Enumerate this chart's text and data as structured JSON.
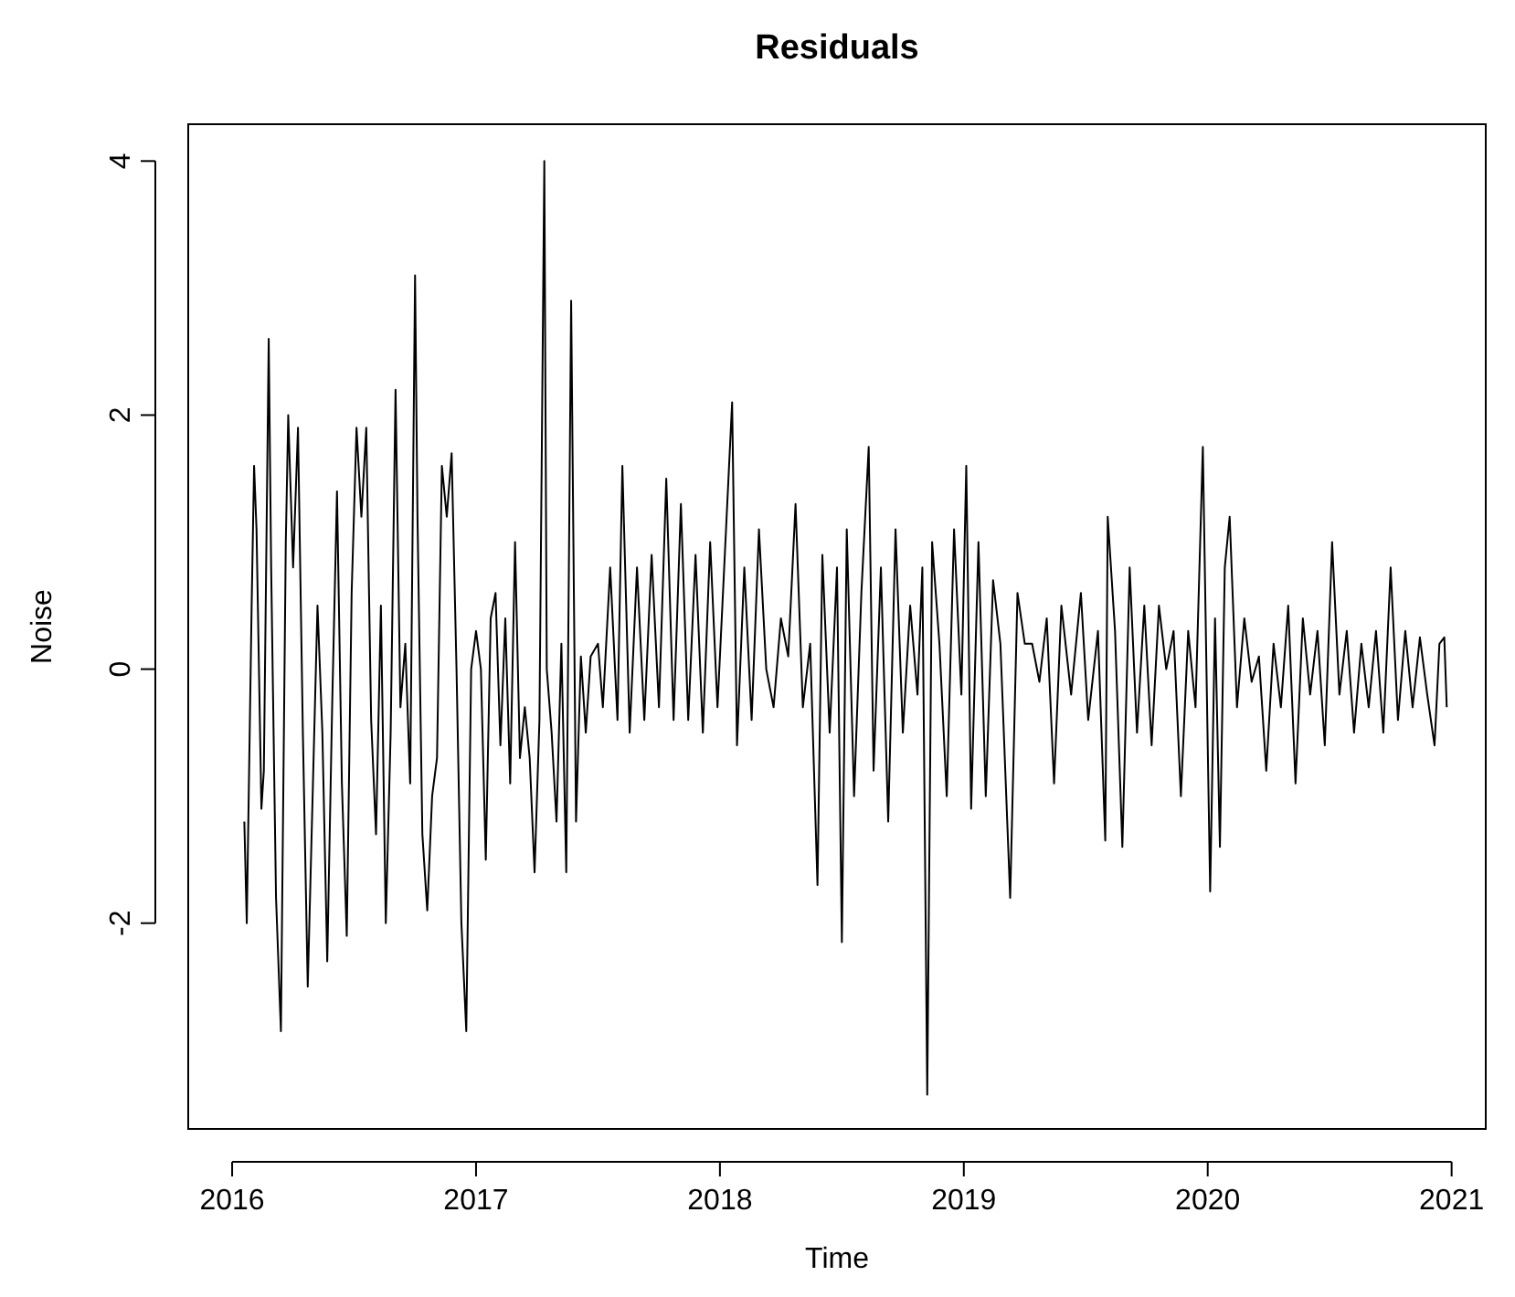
{
  "chart_data": {
    "type": "line",
    "title": "Residuals",
    "xlabel": "Time",
    "ylabel": "Noise",
    "xlim": [
      2015.82,
      2021.14
    ],
    "ylim": [
      -3.62,
      4.29
    ],
    "xticks": [
      2016,
      2017,
      2018,
      2019,
      2020,
      2021
    ],
    "yticks": [
      -2,
      0,
      2,
      4
    ],
    "grid": false,
    "marker": "none",
    "line_style": "solid",
    "series": [
      {
        "color": "#000000",
        "x": [
          2016.05,
          2016.06,
          2016.08,
          2016.09,
          2016.1,
          2016.12,
          2016.13,
          2016.15,
          2016.16,
          2016.18,
          2016.2,
          2016.22,
          2016.23,
          2016.25,
          2016.27,
          2016.29,
          2016.31,
          2016.33,
          2016.35,
          2016.37,
          2016.39,
          2016.41,
          2016.43,
          2016.45,
          2016.47,
          2016.49,
          2016.51,
          2016.53,
          2016.55,
          2016.57,
          2016.59,
          2016.61,
          2016.63,
          2016.65,
          2016.67,
          2016.69,
          2016.71,
          2016.73,
          2016.75,
          2016.76,
          2016.78,
          2016.8,
          2016.82,
          2016.84,
          2016.86,
          2016.88,
          2016.9,
          2016.92,
          2016.94,
          2016.96,
          2016.98,
          2017.0,
          2017.02,
          2017.04,
          2017.06,
          2017.08,
          2017.1,
          2017.12,
          2017.14,
          2017.16,
          2017.18,
          2017.2,
          2017.22,
          2017.24,
          2017.26,
          2017.28,
          2017.29,
          2017.31,
          2017.33,
          2017.35,
          2017.37,
          2017.39,
          2017.41,
          2017.43,
          2017.45,
          2017.47,
          2017.5,
          2017.52,
          2017.55,
          2017.58,
          2017.6,
          2017.63,
          2017.66,
          2017.69,
          2017.72,
          2017.75,
          2017.78,
          2017.81,
          2017.84,
          2017.87,
          2017.9,
          2017.93,
          2017.96,
          2017.99,
          2018.02,
          2018.05,
          2018.07,
          2018.1,
          2018.13,
          2018.16,
          2018.19,
          2018.22,
          2018.25,
          2018.28,
          2018.31,
          2018.34,
          2018.37,
          2018.4,
          2018.42,
          2018.45,
          2018.48,
          2018.5,
          2018.52,
          2018.55,
          2018.58,
          2018.61,
          2018.63,
          2018.66,
          2018.69,
          2018.72,
          2018.75,
          2018.78,
          2018.81,
          2018.83,
          2018.85,
          2018.87,
          2018.9,
          2018.93,
          2018.96,
          2018.99,
          2019.01,
          2019.03,
          2019.06,
          2019.09,
          2019.12,
          2019.15,
          2019.19,
          2019.22,
          2019.25,
          2019.28,
          2019.31,
          2019.34,
          2019.37,
          2019.4,
          2019.44,
          2019.48,
          2019.51,
          2019.55,
          2019.58,
          2019.59,
          2019.62,
          2019.65,
          2019.68,
          2019.71,
          2019.74,
          2019.77,
          2019.8,
          2019.83,
          2019.86,
          2019.89,
          2019.92,
          2019.95,
          2019.98,
          2020.0,
          2020.01,
          2020.03,
          2020.05,
          2020.07,
          2020.09,
          2020.12,
          2020.15,
          2020.18,
          2020.21,
          2020.24,
          2020.27,
          2020.3,
          2020.33,
          2020.36,
          2020.39,
          2020.42,
          2020.45,
          2020.48,
          2020.51,
          2020.54,
          2020.57,
          2020.6,
          2020.63,
          2020.66,
          2020.69,
          2020.72,
          2020.75,
          2020.78,
          2020.81,
          2020.84,
          2020.87,
          2020.9,
          2020.93,
          2020.95,
          2020.97,
          2020.98
        ],
        "values": [
          -1.2,
          -2.0,
          0.5,
          1.6,
          1.1,
          -1.1,
          -0.8,
          2.6,
          0.8,
          -1.8,
          -2.85,
          1.0,
          2.0,
          0.8,
          1.9,
          -0.5,
          -2.5,
          -1.0,
          0.5,
          -0.5,
          -2.3,
          -0.3,
          1.4,
          -0.9,
          -2.1,
          0.6,
          1.9,
          1.2,
          1.9,
          -0.4,
          -1.3,
          0.5,
          -2.0,
          -0.5,
          2.2,
          -0.3,
          0.2,
          -0.9,
          3.1,
          1.2,
          -1.3,
          -1.9,
          -1.0,
          -0.7,
          1.6,
          1.2,
          1.7,
          0.0,
          -2.0,
          -2.85,
          0.0,
          0.3,
          0.0,
          -1.5,
          0.4,
          0.6,
          -0.6,
          0.4,
          -0.9,
          1.0,
          -0.7,
          -0.3,
          -0.7,
          -1.6,
          -0.4,
          4.0,
          0.0,
          -0.5,
          -1.2,
          0.2,
          -1.6,
          2.9,
          -1.2,
          0.1,
          -0.5,
          0.1,
          0.2,
          -0.3,
          0.8,
          -0.4,
          1.6,
          -0.5,
          0.8,
          -0.4,
          0.9,
          -0.3,
          1.5,
          -0.4,
          1.3,
          -0.4,
          0.9,
          -0.5,
          1.0,
          -0.3,
          0.9,
          2.1,
          -0.6,
          0.8,
          -0.4,
          1.1,
          0.0,
          -0.3,
          0.4,
          0.1,
          1.3,
          -0.3,
          0.2,
          -1.7,
          0.9,
          -0.5,
          0.8,
          -2.15,
          1.1,
          -1.0,
          0.6,
          1.75,
          -0.8,
          0.8,
          -1.2,
          1.1,
          -0.5,
          0.5,
          -0.2,
          0.8,
          -3.35,
          1.0,
          0.2,
          -1.0,
          1.1,
          -0.2,
          1.6,
          -1.1,
          1.0,
          -1.0,
          0.7,
          0.2,
          -1.8,
          0.6,
          0.2,
          0.2,
          -0.1,
          0.4,
          -0.9,
          0.5,
          -0.2,
          0.6,
          -0.4,
          0.3,
          -1.35,
          1.2,
          0.3,
          -1.4,
          0.8,
          -0.5,
          0.5,
          -0.6,
          0.5,
          0.0,
          0.3,
          -1.0,
          0.3,
          -0.3,
          1.75,
          -0.6,
          -1.75,
          0.4,
          -1.4,
          0.8,
          1.2,
          -0.3,
          0.4,
          -0.1,
          0.1,
          -0.8,
          0.2,
          -0.3,
          0.5,
          -0.9,
          0.4,
          -0.2,
          0.3,
          -0.6,
          1.0,
          -0.2,
          0.3,
          -0.5,
          0.2,
          -0.3,
          0.3,
          -0.5,
          0.8,
          -0.4,
          0.3,
          -0.3,
          0.25,
          -0.2,
          -0.6,
          0.2,
          0.25,
          -0.3
        ]
      }
    ]
  }
}
